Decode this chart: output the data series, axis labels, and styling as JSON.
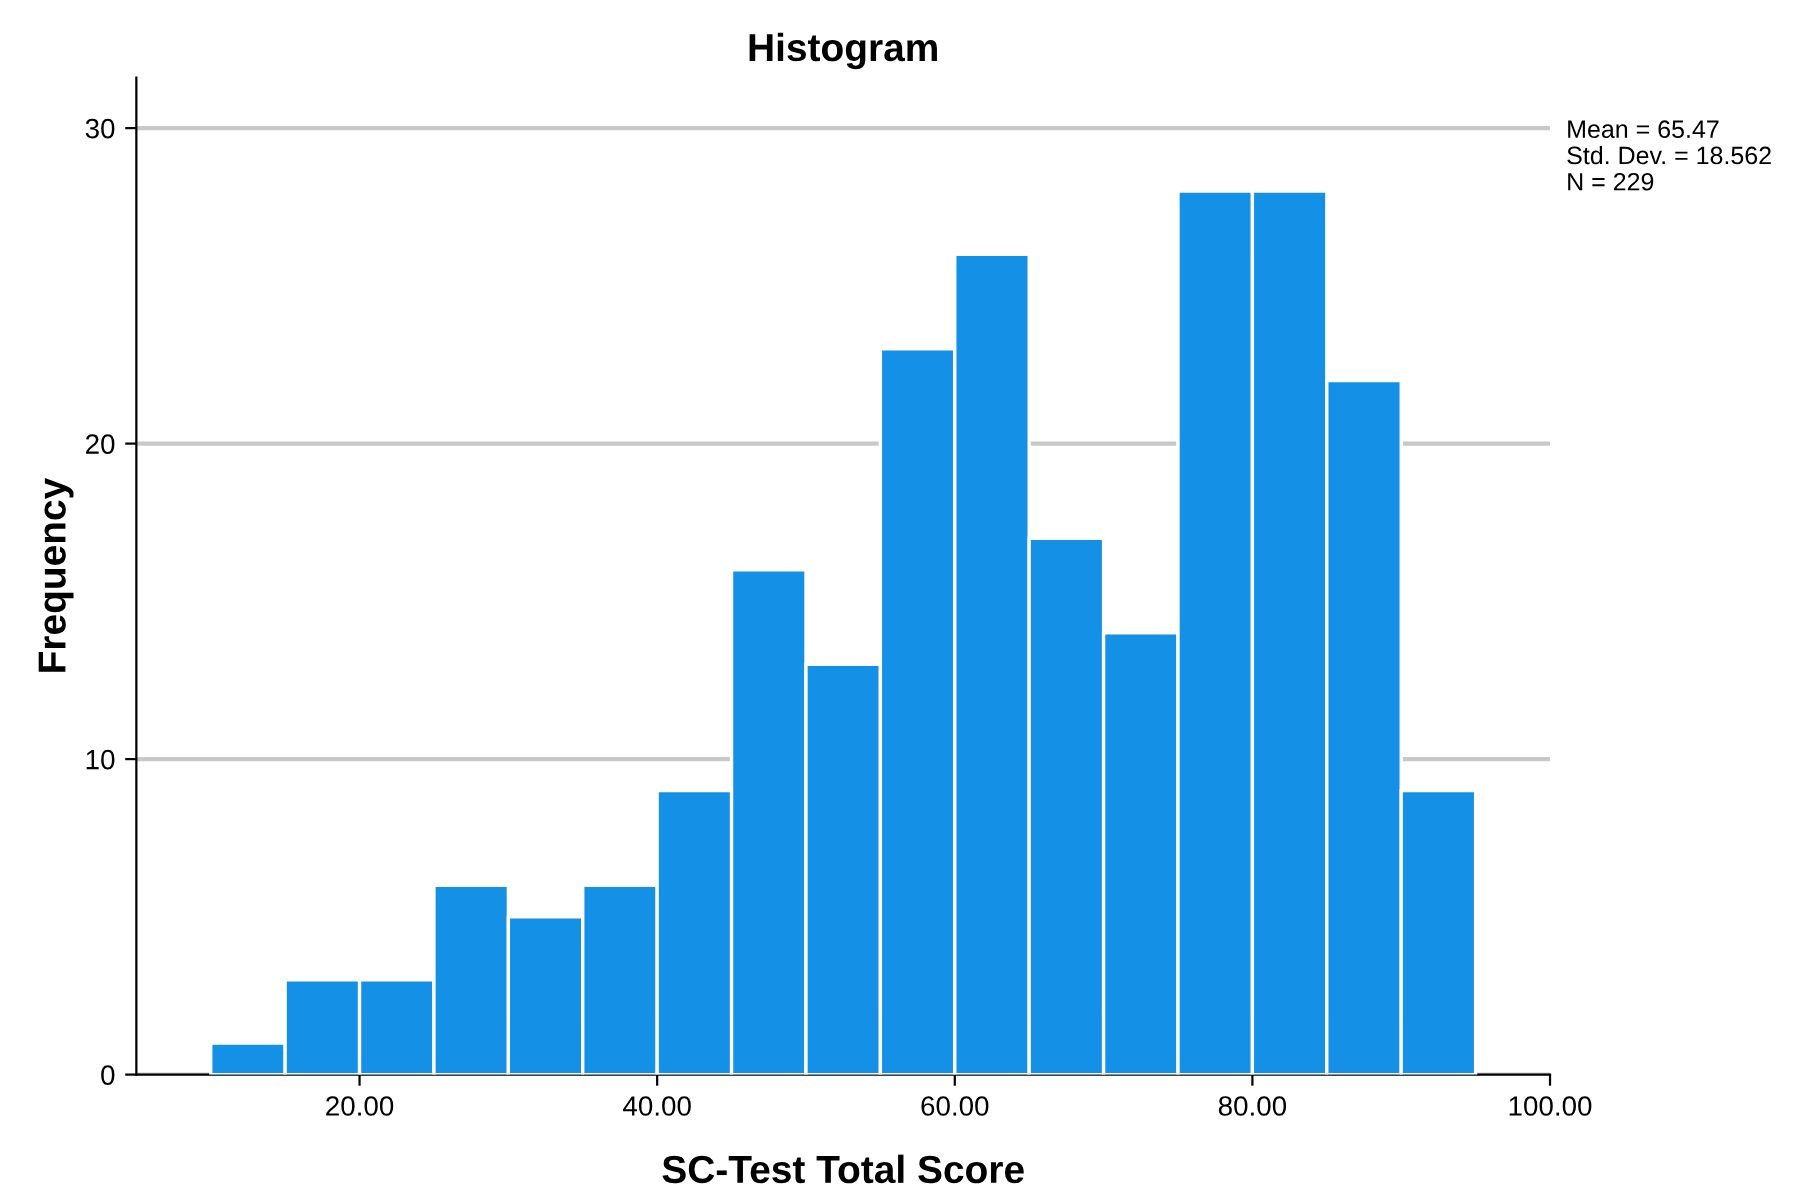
{
  "chart_data": {
    "type": "histogram",
    "title": "Histogram",
    "xlabel": "SC-Test Total Score",
    "ylabel": "Frequency",
    "bins": [
      10,
      15,
      20,
      25,
      30,
      35,
      40,
      45,
      50,
      55,
      60,
      65,
      70,
      75,
      80,
      85,
      90,
      95
    ],
    "values": [
      1,
      3,
      3,
      6,
      5,
      6,
      9,
      16,
      13,
      23,
      26,
      17,
      14,
      28,
      28,
      22,
      9
    ],
    "color": "#1491e6",
    "xlim": [
      5,
      100
    ],
    "xticks": [
      {
        "value": 20,
        "label": "20.00"
      },
      {
        "value": 40,
        "label": "40.00"
      },
      {
        "value": 60,
        "label": "60.00"
      },
      {
        "value": 80,
        "label": "80.00"
      },
      {
        "value": 100,
        "label": "100.00"
      }
    ],
    "ylim": [
      0,
      31.6
    ],
    "yticks": [
      0,
      10,
      20,
      30
    ],
    "grid": "y",
    "annotations": [
      "Mean = 65.47",
      "Std. Dev. = 18.562",
      "N = 229"
    ]
  }
}
